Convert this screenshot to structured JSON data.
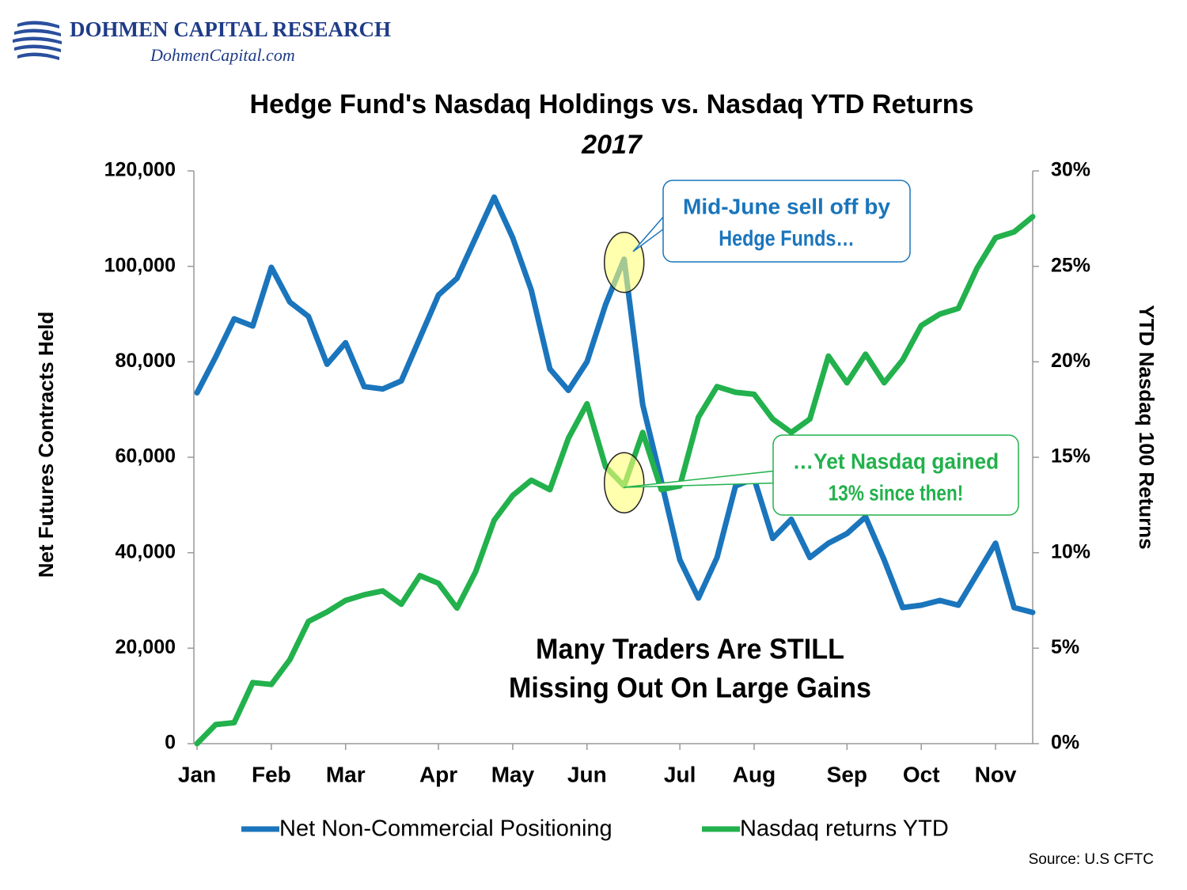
{
  "header": {
    "company": "DOHMEN CAPITAL RESEARCH",
    "website": "DohmenCapital.com"
  },
  "chart_data": {
    "type": "line",
    "title": "Hedge Fund's Nasdaq Holdings vs. Nasdaq YTD Returns",
    "subtitle": "2017",
    "y_label": "Net Futures Contracts Held",
    "y2_label": "YTD Nasdaq 100 Returns",
    "categories": [
      "Jan",
      null,
      null,
      null,
      "Feb",
      null,
      null,
      null,
      "Mar",
      null,
      null,
      null,
      null,
      "Apr",
      null,
      null,
      null,
      "May",
      null,
      null,
      null,
      "Jun",
      null,
      null,
      null,
      null,
      "Jul",
      null,
      null,
      null,
      "Aug",
      null,
      null,
      null,
      null,
      "Sep",
      null,
      null,
      null,
      "Oct",
      null,
      null,
      null,
      "Nov",
      null,
      null
    ],
    "series": [
      {
        "name": "Net Non-Commercial Positioning",
        "color": "#1a75bc",
        "values": [
          73500,
          81000,
          89000,
          87500,
          99800,
          92500,
          89500,
          79500,
          84000,
          74800,
          74300,
          76000,
          85000,
          94000,
          97500,
          106000,
          114500,
          106000,
          95000,
          78500,
          74000,
          80000,
          92000,
          101500,
          71000,
          55000,
          38500,
          30500,
          39000,
          54000,
          55500,
          43000,
          47000,
          39000,
          42000,
          44000,
          47500,
          38500,
          28500,
          29000,
          30000,
          29000,
          35500,
          42000,
          28500,
          27500
        ]
      },
      {
        "name": "Nasdaq returns YTD",
        "color": "#22b14c",
        "axis": "y2",
        "values": [
          0,
          1.0,
          1.1,
          3.2,
          3.1,
          4.4,
          6.4,
          6.9,
          7.5,
          7.8,
          8.0,
          7.3,
          8.8,
          8.4,
          7.1,
          9.0,
          11.7,
          13.0,
          13.8,
          13.3,
          16.0,
          17.8,
          14.5,
          13.5,
          16.3,
          13.3,
          13.5,
          17.1,
          18.7,
          18.4,
          18.3,
          17.0,
          16.3,
          17.0,
          20.3,
          18.9,
          20.4,
          18.9,
          20.1,
          21.9,
          22.5,
          22.8,
          24.9,
          26.5,
          26.8,
          27.6
        ]
      }
    ],
    "ylim": [
      0,
      120000
    ],
    "yticks": [
      {
        "value": 0,
        "label": "0"
      },
      {
        "value": 20000,
        "label": "20,000"
      },
      {
        "value": 40000,
        "label": "40,000"
      },
      {
        "value": 60000,
        "label": "60,000"
      },
      {
        "value": 80000,
        "label": "80,000"
      },
      {
        "value": 100000,
        "label": "100,000"
      },
      {
        "value": 120000,
        "label": "120,000"
      }
    ],
    "y2lim": [
      0,
      30
    ],
    "y2ticks": [
      {
        "value": 0,
        "label": "0%"
      },
      {
        "value": 5,
        "label": "5%"
      },
      {
        "value": 10,
        "label": "10%"
      },
      {
        "value": 15,
        "label": "15%"
      },
      {
        "value": 20,
        "label": "20%"
      },
      {
        "value": 25,
        "label": "25%"
      },
      {
        "value": 30,
        "label": "30%"
      }
    ],
    "grid": false,
    "legend": "bottom",
    "annotations": [
      {
        "text": [
          "Many Traders Are STILL",
          "Missing Out On Large Gains"
        ]
      },
      {
        "text": [
          "Mid-June sell off by",
          "Hedge Funds…"
        ]
      },
      {
        "text": [
          "…Yet Nasdaq gained",
          "13% since then!"
        ]
      }
    ],
    "source": "Source: U.S CFTC"
  }
}
